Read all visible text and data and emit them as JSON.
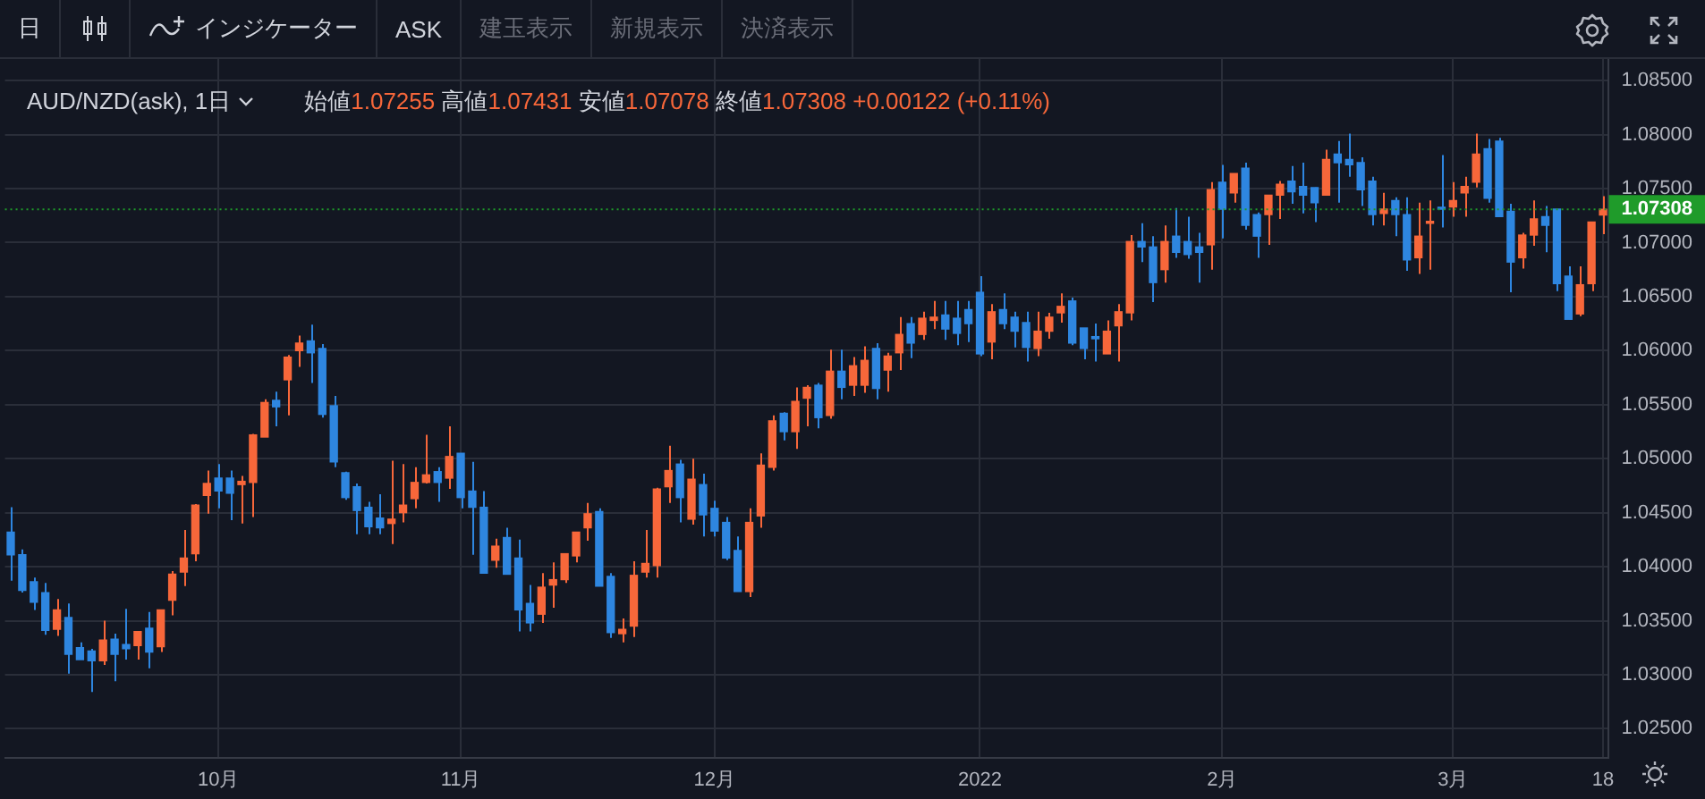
{
  "chart_data": {
    "type": "candlestick",
    "title": "AUD/NZD(ask), 1日",
    "subtitle": "始値1.07255 高値1.07431 安値1.07078 終値1.07308 +0.00122 (+0.11%)",
    "annotations": [
      "日",
      "インジケーター",
      "ASK",
      "建玉表示",
      "新規表示",
      "決済表示"
    ],
    "categories": [
      null,
      null,
      null,
      null,
      null,
      null,
      null,
      null,
      null,
      null,
      null,
      null,
      null,
      null,
      null,
      null,
      null,
      null,
      "10月",
      null,
      null,
      null,
      null,
      null,
      null,
      null,
      null,
      null,
      null,
      null,
      null,
      null,
      null,
      null,
      null,
      null,
      null,
      null,
      null,
      "11月",
      null,
      null,
      null,
      null,
      null,
      null,
      null,
      null,
      null,
      null,
      null,
      null,
      null,
      null,
      null,
      null,
      null,
      null,
      null,
      null,
      null,
      "12月",
      null,
      null,
      null,
      null,
      null,
      null,
      null,
      null,
      null,
      null,
      null,
      null,
      null,
      null,
      null,
      null,
      null,
      null,
      null,
      null,
      null,
      null,
      "2022",
      null,
      null,
      null,
      null,
      null,
      null,
      null,
      null,
      null,
      null,
      null,
      null,
      null,
      null,
      null,
      null,
      null,
      null,
      null,
      null,
      "2月",
      null,
      null,
      null,
      null,
      null,
      null,
      null,
      null,
      null,
      null,
      null,
      null,
      null,
      null,
      null,
      null,
      null,
      null,
      null,
      "3月",
      null,
      null,
      null,
      null,
      null,
      null,
      null,
      null,
      null,
      null,
      null,
      null,
      "18"
    ],
    "ohlc": [
      [
        1.0432,
        1.0455,
        1.0387,
        1.0411
      ],
      [
        1.0411,
        1.0416,
        1.0376,
        1.0378
      ],
      [
        1.0386,
        1.039,
        1.036,
        1.0367
      ],
      [
        1.0376,
        1.0385,
        1.0337,
        1.0341
      ],
      [
        1.0342,
        1.037,
        1.0336,
        1.036
      ],
      [
        1.0353,
        1.0366,
        1.0301,
        1.0319
      ],
      [
        1.0325,
        1.033,
        1.0314,
        1.0314
      ],
      [
        1.0322,
        1.0324,
        1.0284,
        1.0313
      ],
      [
        1.0313,
        1.035,
        1.0309,
        1.0332
      ],
      [
        1.0333,
        1.0338,
        1.0294,
        1.0319
      ],
      [
        1.0328,
        1.0361,
        1.0314,
        1.0324
      ],
      [
        1.0327,
        1.034,
        1.0314,
        1.034
      ],
      [
        1.0343,
        1.0358,
        1.0306,
        1.0321
      ],
      [
        1.0326,
        1.036,
        1.0321,
        1.036
      ],
      [
        1.0369,
        1.0396,
        1.0355,
        1.0393
      ],
      [
        1.0395,
        1.0434,
        1.0382,
        1.0408
      ],
      [
        1.0412,
        1.0458,
        1.0405,
        1.0457
      ],
      [
        1.0466,
        1.0489,
        1.0449,
        1.0477
      ],
      [
        1.0482,
        1.0495,
        1.0454,
        1.047
      ],
      [
        1.0482,
        1.0489,
        1.0443,
        1.0468
      ],
      [
        1.0476,
        1.0484,
        1.044,
        1.0479
      ],
      [
        1.0478,
        1.0523,
        1.0446,
        1.0522
      ],
      [
        1.052,
        1.0555,
        1.052,
        1.0552
      ],
      [
        1.0554,
        1.0562,
        1.053,
        1.0548
      ],
      [
        1.0573,
        1.0596,
        1.054,
        1.0594
      ],
      [
        1.06,
        1.0614,
        1.0585,
        1.0607
      ],
      [
        1.0609,
        1.0624,
        1.057,
        1.0598
      ],
      [
        1.0602,
        1.0606,
        1.0538,
        1.0541
      ],
      [
        1.0549,
        1.0558,
        1.0492,
        1.0497
      ],
      [
        1.0487,
        1.0488,
        1.0462,
        1.0464
      ],
      [
        1.0474,
        1.0477,
        1.043,
        1.0452
      ],
      [
        1.0455,
        1.046,
        1.043,
        1.0437
      ],
      [
        1.0445,
        1.0467,
        1.043,
        1.0436
      ],
      [
        1.044,
        1.0498,
        1.0421,
        1.0444
      ],
      [
        1.045,
        1.0495,
        1.0441,
        1.0457
      ],
      [
        1.0463,
        1.0492,
        1.0454,
        1.0478
      ],
      [
        1.0478,
        1.0522,
        1.0477,
        1.0485
      ],
      [
        1.0488,
        1.0492,
        1.046,
        1.0478
      ],
      [
        1.0482,
        1.053,
        1.0472,
        1.0502
      ],
      [
        1.0505,
        1.0505,
        1.0454,
        1.0464
      ],
      [
        1.047,
        1.0497,
        1.0411,
        1.0455
      ],
      [
        1.0455,
        1.047,
        1.0394,
        1.0394
      ],
      [
        1.0406,
        1.0426,
        1.0399,
        1.0419
      ],
      [
        1.0427,
        1.0436,
        1.0393,
        1.0393
      ],
      [
        1.0408,
        1.0425,
        1.034,
        1.036
      ],
      [
        1.0366,
        1.0383,
        1.034,
        1.0348
      ],
      [
        1.0356,
        1.0394,
        1.0348,
        1.0381
      ],
      [
        1.0383,
        1.0404,
        1.0362,
        1.0388
      ],
      [
        1.0388,
        1.0412,
        1.0385,
        1.0412
      ],
      [
        1.041,
        1.0432,
        1.0404,
        1.0432
      ],
      [
        1.0436,
        1.0459,
        1.0424,
        1.0449
      ],
      [
        1.0451,
        1.0454,
        1.0382,
        1.0382
      ],
      [
        1.0391,
        1.0394,
        1.0334,
        1.0339
      ],
      [
        1.0338,
        1.0352,
        1.033,
        1.0342
      ],
      [
        1.0345,
        1.0405,
        1.0335,
        1.0392
      ],
      [
        1.0395,
        1.0434,
        1.039,
        1.0403
      ],
      [
        1.0401,
        1.0473,
        1.039,
        1.0472
      ],
      [
        1.0474,
        1.0512,
        1.0459,
        1.0489
      ],
      [
        1.0495,
        1.0499,
        1.0441,
        1.0464
      ],
      [
        1.0444,
        1.05,
        1.0439,
        1.0481
      ],
      [
        1.0476,
        1.0486,
        1.0428,
        1.0448
      ],
      [
        1.0454,
        1.0461,
        1.0428,
        1.0433
      ],
      [
        1.0441,
        1.0446,
        1.0406,
        1.0408
      ],
      [
        1.0415,
        1.0428,
        1.0377,
        1.0377
      ],
      [
        1.0377,
        1.0454,
        1.0372,
        1.0441
      ],
      [
        1.0447,
        1.0505,
        1.0436,
        1.0494
      ],
      [
        1.0492,
        1.054,
        1.0489,
        1.0535
      ],
      [
        1.0542,
        1.0543,
        1.0517,
        1.0525
      ],
      [
        1.0525,
        1.0566,
        1.0509,
        1.0553
      ],
      [
        1.0556,
        1.0568,
        1.053,
        1.0566
      ],
      [
        1.0568,
        1.057,
        1.0528,
        1.0538
      ],
      [
        1.054,
        1.0601,
        1.0537,
        1.0581
      ],
      [
        1.0581,
        1.0601,
        1.0555,
        1.0566
      ],
      [
        1.0568,
        1.0594,
        1.0558,
        1.0586
      ],
      [
        1.0568,
        1.0604,
        1.0561,
        1.0591
      ],
      [
        1.0602,
        1.0607,
        1.0555,
        1.0565
      ],
      [
        1.0582,
        1.0598,
        1.0562,
        1.0595
      ],
      [
        1.0598,
        1.0631,
        1.0582,
        1.0615
      ],
      [
        1.0625,
        1.0631,
        1.0593,
        1.0607
      ],
      [
        1.0615,
        1.0636,
        1.061,
        1.063
      ],
      [
        1.0628,
        1.0646,
        1.062,
        1.0631
      ],
      [
        1.0633,
        1.0646,
        1.061,
        1.062
      ],
      [
        1.063,
        1.0646,
        1.0605,
        1.0616
      ],
      [
        1.0638,
        1.0646,
        1.0608,
        1.0625
      ],
      [
        1.0654,
        1.0669,
        1.0595,
        1.0597
      ],
      [
        1.0608,
        1.0643,
        1.0592,
        1.0636
      ],
      [
        1.0638,
        1.0653,
        1.062,
        1.0625
      ],
      [
        1.0631,
        1.0636,
        1.0603,
        1.0618
      ],
      [
        1.0626,
        1.0636,
        1.059,
        1.0603
      ],
      [
        1.0602,
        1.0636,
        1.0595,
        1.0618
      ],
      [
        1.0618,
        1.0635,
        1.0611,
        1.0631
      ],
      [
        1.0635,
        1.0653,
        1.0626,
        1.0641
      ],
      [
        1.0646,
        1.0649,
        1.0605,
        1.0607
      ],
      [
        1.0621,
        1.0621,
        1.0592,
        1.0602
      ],
      [
        1.0613,
        1.0625,
        1.059,
        1.0611
      ],
      [
        1.0597,
        1.0628,
        1.0597,
        1.0618
      ],
      [
        1.0623,
        1.0643,
        1.059,
        1.0636
      ],
      [
        1.0635,
        1.0707,
        1.0628,
        1.0701
      ],
      [
        1.0701,
        1.0718,
        1.0682,
        1.0696
      ],
      [
        1.0696,
        1.0706,
        1.0645,
        1.0663
      ],
      [
        1.0675,
        1.0716,
        1.0663,
        1.0701
      ],
      [
        1.0706,
        1.0732,
        1.0686,
        1.0691
      ],
      [
        1.0701,
        1.0724,
        1.0685,
        1.0689
      ],
      [
        1.0696,
        1.0709,
        1.0663,
        1.0691
      ],
      [
        1.0698,
        1.0756,
        1.0675,
        1.0749
      ],
      [
        1.0756,
        1.0772,
        1.0704,
        1.0731
      ],
      [
        1.0746,
        1.0764,
        1.0737,
        1.0764
      ],
      [
        1.0769,
        1.0774,
        1.0712,
        1.0716
      ],
      [
        1.0726,
        1.0728,
        1.0686,
        1.0706
      ],
      [
        1.0726,
        1.0744,
        1.0698,
        1.0744
      ],
      [
        1.0744,
        1.0757,
        1.0722,
        1.0754
      ],
      [
        1.0757,
        1.0771,
        1.0736,
        1.0747
      ],
      [
        1.0752,
        1.0774,
        1.0727,
        1.0744
      ],
      [
        1.0751,
        1.0751,
        1.0719,
        1.0737
      ],
      [
        1.0744,
        1.0786,
        1.0744,
        1.0777
      ],
      [
        1.0782,
        1.0794,
        1.0737,
        1.0774
      ],
      [
        1.0777,
        1.0801,
        1.0761,
        1.0772
      ],
      [
        1.0774,
        1.0779,
        1.0734,
        1.0749
      ],
      [
        1.0757,
        1.0761,
        1.0716,
        1.0726
      ],
      [
        1.0727,
        1.0746,
        1.0716,
        1.0731
      ],
      [
        1.0739,
        1.0742,
        1.0706,
        1.0726
      ],
      [
        1.0726,
        1.0742,
        1.0674,
        1.0684
      ],
      [
        1.0686,
        1.0737,
        1.0671,
        1.0706
      ],
      [
        1.0718,
        1.0739,
        1.0675,
        1.0719
      ],
      [
        1.0732,
        1.0781,
        1.0714,
        1.0731
      ],
      [
        1.0733,
        1.0756,
        1.0724,
        1.0739
      ],
      [
        1.0746,
        1.0761,
        1.0724,
        1.0752
      ],
      [
        1.0756,
        1.0801,
        1.0751,
        1.0782
      ],
      [
        1.0787,
        1.0796,
        1.0737,
        1.0741
      ],
      [
        1.0794,
        1.0797,
        1.0724,
        1.0724
      ],
      [
        1.0729,
        1.0736,
        1.0654,
        1.0682
      ],
      [
        1.0686,
        1.0709,
        1.0676,
        1.0707
      ],
      [
        1.0707,
        1.0739,
        1.0697,
        1.0722
      ],
      [
        1.0724,
        1.0734,
        1.0691,
        1.0716
      ],
      [
        1.0731,
        1.0731,
        1.0655,
        1.0662
      ],
      [
        1.0669,
        1.0678,
        1.0629,
        1.0629
      ],
      [
        1.0634,
        1.0678,
        1.0632,
        1.0661
      ],
      [
        1.0662,
        1.0719,
        1.0655,
        1.0719
      ],
      [
        1.07255,
        1.07431,
        1.07078,
        1.07308
      ]
    ],
    "colors": [
      "#2e86e0",
      "#2e86e0",
      "#2e86e0",
      "#2e86e0",
      "#f7673a",
      "#2e86e0",
      "#2e86e0",
      "#2e86e0",
      "#f7673a",
      "#2e86e0",
      "#2e86e0",
      "#f7673a",
      "#2e86e0",
      "#f7673a",
      "#f7673a",
      "#f7673a",
      "#f7673a",
      "#f7673a",
      "#2e86e0",
      "#2e86e0",
      "#f7673a",
      "#f7673a",
      "#f7673a",
      "#2e86e0",
      "#f7673a",
      "#f7673a",
      "#2e86e0",
      "#2e86e0",
      "#2e86e0",
      "#2e86e0",
      "#2e86e0",
      "#2e86e0",
      "#2e86e0",
      "#f7673a",
      "#f7673a",
      "#f7673a",
      "#f7673a",
      "#2e86e0",
      "#f7673a",
      "#2e86e0",
      "#2e86e0",
      "#2e86e0",
      "#f7673a",
      "#2e86e0",
      "#2e86e0",
      "#2e86e0",
      "#f7673a",
      "#f7673a",
      "#f7673a",
      "#f7673a",
      "#f7673a",
      "#2e86e0",
      "#2e86e0",
      "#f7673a",
      "#f7673a",
      "#f7673a",
      "#f7673a",
      "#f7673a",
      "#2e86e0",
      "#f7673a",
      "#2e86e0",
      "#2e86e0",
      "#2e86e0",
      "#2e86e0",
      "#f7673a",
      "#f7673a",
      "#f7673a",
      "#2e86e0",
      "#f7673a",
      "#f7673a",
      "#2e86e0",
      "#f7673a",
      "#2e86e0",
      "#f7673a",
      "#f7673a",
      "#2e86e0",
      "#f7673a",
      "#f7673a",
      "#2e86e0",
      "#f7673a",
      "#f7673a",
      "#2e86e0",
      "#2e86e0",
      "#2e86e0",
      "#2e86e0",
      "#f7673a",
      "#2e86e0",
      "#2e86e0",
      "#2e86e0",
      "#f7673a",
      "#f7673a",
      "#f7673a",
      "#2e86e0",
      "#2e86e0",
      "#2e86e0",
      "#f7673a",
      "#f7673a",
      "#f7673a",
      "#2e86e0",
      "#2e86e0",
      "#f7673a",
      "#2e86e0",
      "#2e86e0",
      "#2e86e0",
      "#f7673a",
      "#2e86e0",
      "#f7673a",
      "#2e86e0",
      "#2e86e0",
      "#f7673a",
      "#f7673a",
      "#2e86e0",
      "#2e86e0",
      "#2e86e0",
      "#f7673a",
      "#2e86e0",
      "#2e86e0",
      "#2e86e0",
      "#2e86e0",
      "#f7673a",
      "#2e86e0",
      "#2e86e0",
      "#f7673a",
      "#f7673a",
      "#2e86e0",
      "#f7673a",
      "#f7673a",
      "#f7673a",
      "#2e86e0",
      "#2e86e0",
      "#2e86e0",
      "#f7673a",
      "#f7673a",
      "#2e86e0",
      "#2e86e0",
      "#2e86e0",
      "#f7673a",
      "#f7673a",
      "#f7673a"
    ],
    "ylim": [
      1.0223,
      1.087
    ],
    "yticks": [
      {
        "value": 1.025,
        "label": "1.02500"
      },
      {
        "value": 1.03,
        "label": "1.03000"
      },
      {
        "value": 1.035,
        "label": "1.03500"
      },
      {
        "value": 1.04,
        "label": "1.04000"
      },
      {
        "value": 1.045,
        "label": "1.04500"
      },
      {
        "value": 1.05,
        "label": "1.05000"
      },
      {
        "value": 1.055,
        "label": "1.05500"
      },
      {
        "value": 1.06,
        "label": "1.06000"
      },
      {
        "value": 1.065,
        "label": "1.06500"
      },
      {
        "value": 1.07,
        "label": "1.07000"
      },
      {
        "value": 1.075,
        "label": "1.07500"
      },
      {
        "value": 1.08,
        "label": "1.08000"
      },
      {
        "value": 1.085,
        "label": "1.08500"
      }
    ],
    "ref_lines": [
      {
        "axis": "y",
        "value": 1.07308,
        "label": "1.07308",
        "color": "#1f9b2a",
        "line_style": "dotted"
      }
    ],
    "grid": true
  }
}
